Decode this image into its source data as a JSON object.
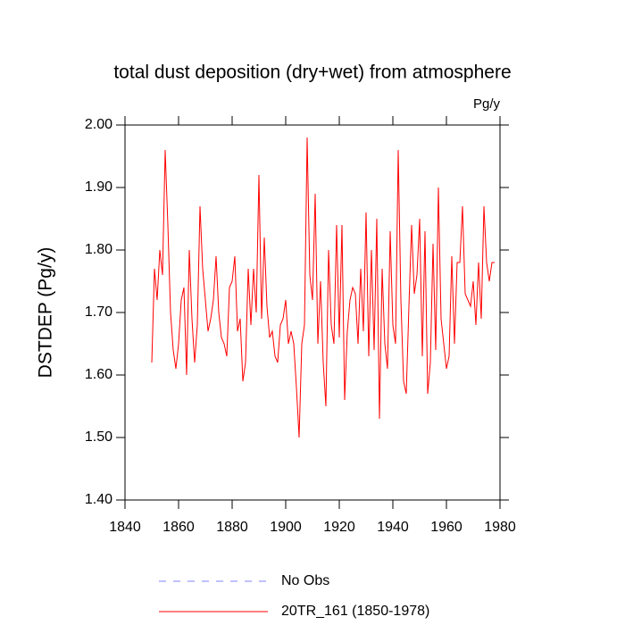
{
  "chart_data": {
    "type": "line",
    "title": "total dust deposition (dry+wet) from atmosphere",
    "units": "Pg/y",
    "y_label": "DSTDEP  (Pg/y)",
    "x": [
      1850,
      1851,
      1852,
      1853,
      1854,
      1855,
      1856,
      1857,
      1858,
      1859,
      1860,
      1861,
      1862,
      1863,
      1864,
      1865,
      1866,
      1867,
      1868,
      1869,
      1870,
      1871,
      1872,
      1873,
      1874,
      1875,
      1876,
      1877,
      1878,
      1879,
      1880,
      1881,
      1882,
      1883,
      1884,
      1885,
      1886,
      1887,
      1888,
      1889,
      1890,
      1891,
      1892,
      1893,
      1894,
      1895,
      1896,
      1897,
      1898,
      1899,
      1900,
      1901,
      1902,
      1903,
      1904,
      1905,
      1906,
      1907,
      1908,
      1909,
      1910,
      1911,
      1912,
      1913,
      1914,
      1915,
      1916,
      1917,
      1918,
      1919,
      1920,
      1921,
      1922,
      1923,
      1924,
      1925,
      1926,
      1927,
      1928,
      1929,
      1930,
      1931,
      1932,
      1933,
      1934,
      1935,
      1936,
      1937,
      1938,
      1939,
      1940,
      1941,
      1942,
      1943,
      1944,
      1945,
      1946,
      1947,
      1948,
      1949,
      1950,
      1951,
      1952,
      1953,
      1954,
      1955,
      1956,
      1957,
      1958,
      1959,
      1960,
      1961,
      1962,
      1963,
      1964,
      1965,
      1966,
      1967,
      1968,
      1969,
      1970,
      1971,
      1972,
      1973,
      1974,
      1975,
      1976,
      1977,
      1978
    ],
    "series": [
      {
        "name": "No Obs",
        "color": "#8080ff",
        "dashed": true,
        "values": [
          null,
          null,
          null,
          null,
          null,
          null,
          null,
          null,
          null,
          null,
          null,
          null,
          null,
          null,
          null,
          null,
          null,
          null,
          null,
          null,
          null,
          null,
          null,
          null,
          null,
          null,
          null,
          null,
          null,
          null,
          null,
          null,
          null,
          null,
          null,
          null,
          null,
          null,
          null,
          null,
          null,
          null,
          null,
          null,
          null,
          null,
          null,
          null,
          null,
          null,
          null,
          null,
          null,
          null,
          null,
          null,
          null,
          null,
          null,
          null,
          null,
          null,
          null,
          null,
          null,
          null,
          null,
          null,
          null,
          null,
          null,
          null,
          null,
          null,
          null,
          null,
          null,
          null,
          null,
          null,
          null,
          null,
          null,
          null,
          null,
          null,
          null,
          null,
          null,
          null,
          null,
          null,
          null,
          null,
          null,
          null,
          null,
          null,
          null,
          null,
          null,
          null,
          null,
          null,
          null,
          null,
          null,
          null,
          null,
          null,
          null,
          null,
          null,
          null,
          null,
          null,
          null,
          null,
          null,
          null,
          null,
          null,
          null,
          null,
          null,
          null,
          null,
          null,
          null
        ]
      },
      {
        "name": "20TR_161 (1850-1978)",
        "color": "#ff0000",
        "dashed": false,
        "values": [
          1.62,
          1.77,
          1.72,
          1.8,
          1.76,
          1.96,
          1.84,
          1.7,
          1.64,
          1.61,
          1.65,
          1.72,
          1.74,
          1.6,
          1.8,
          1.69,
          1.62,
          1.68,
          1.87,
          1.77,
          1.72,
          1.67,
          1.69,
          1.72,
          1.79,
          1.7,
          1.66,
          1.65,
          1.63,
          1.74,
          1.75,
          1.79,
          1.67,
          1.69,
          1.59,
          1.62,
          1.77,
          1.68,
          1.77,
          1.7,
          1.92,
          1.69,
          1.82,
          1.71,
          1.66,
          1.67,
          1.63,
          1.62,
          1.68,
          1.69,
          1.72,
          1.65,
          1.67,
          1.65,
          1.58,
          1.5,
          1.65,
          1.68,
          1.98,
          1.76,
          1.72,
          1.89,
          1.65,
          1.75,
          1.62,
          1.55,
          1.8,
          1.68,
          1.65,
          1.84,
          1.66,
          1.84,
          1.56,
          1.67,
          1.72,
          1.74,
          1.73,
          1.65,
          1.77,
          1.67,
          1.86,
          1.63,
          1.8,
          1.64,
          1.85,
          1.53,
          1.77,
          1.65,
          1.61,
          1.83,
          1.68,
          1.65,
          1.96,
          1.72,
          1.59,
          1.57,
          1.71,
          1.84,
          1.73,
          1.76,
          1.85,
          1.63,
          1.83,
          1.57,
          1.62,
          1.81,
          1.64,
          1.9,
          1.69,
          1.65,
          1.61,
          1.63,
          1.79,
          1.65,
          1.78,
          1.78,
          1.87,
          1.73,
          1.72,
          1.71,
          1.75,
          1.68,
          1.78,
          1.69,
          1.87,
          1.78,
          1.75,
          1.78,
          1.78
        ]
      }
    ],
    "xlim": [
      1840,
      1980
    ],
    "xticks": [
      1840,
      1860,
      1880,
      1900,
      1920,
      1940,
      1960,
      1980
    ],
    "ylim": [
      1.4,
      2.0
    ],
    "yticks": [
      {
        "value": 1.4,
        "label": "1.40"
      },
      {
        "value": 1.5,
        "label": "1.50"
      },
      {
        "value": 1.6,
        "label": "1.60"
      },
      {
        "value": 1.7,
        "label": "1.70"
      },
      {
        "value": 1.8,
        "label": "1.80"
      },
      {
        "value": 1.9,
        "label": "1.90"
      },
      {
        "value": 2.0,
        "label": "2.00"
      }
    ],
    "grid": false
  }
}
